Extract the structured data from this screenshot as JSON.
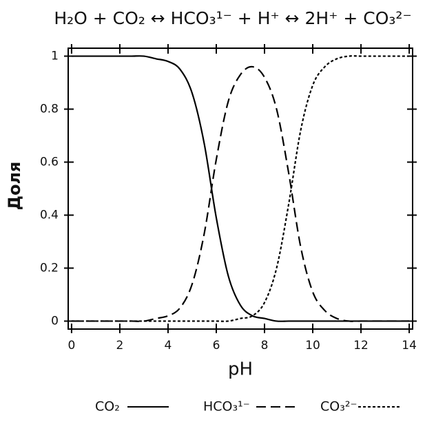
{
  "chart_data": {
    "type": "line",
    "title": "H₂O + CO₂ ↔ HCO₃¹⁻ + H⁺ ↔ 2H⁺ + CO₃²⁻",
    "x_label": "pH",
    "y_label": "Доля",
    "x": [
      0,
      0.5,
      1,
      1.5,
      2,
      2.5,
      3,
      3.5,
      4,
      4.5,
      5,
      5.5,
      6,
      6.5,
      7,
      7.5,
      8,
      8.5,
      9,
      9.5,
      10,
      10.5,
      11,
      11.5,
      12,
      12.5,
      13,
      13.5,
      14
    ],
    "series": [
      {
        "name": "CO₂",
        "color": "#000000",
        "dash": "solid",
        "values": [
          1,
          1,
          1,
          1,
          1,
          1,
          1,
          0.99,
          0.98,
          0.95,
          0.86,
          0.67,
          0.39,
          0.17,
          0.06,
          0.02,
          0.01,
          0,
          0,
          0,
          0,
          0,
          0,
          0,
          0,
          0,
          0,
          0,
          0
        ]
      },
      {
        "name": "HCO₃¹⁻",
        "color": "#000000",
        "dash": "dashed",
        "values": [
          0,
          0,
          0,
          0,
          0,
          0,
          0,
          0.01,
          0.02,
          0.05,
          0.14,
          0.33,
          0.61,
          0.83,
          0.93,
          0.96,
          0.92,
          0.8,
          0.56,
          0.28,
          0.11,
          0.04,
          0.01,
          0,
          0,
          0,
          0,
          0,
          0
        ]
      },
      {
        "name": "CO₃²⁻",
        "color": "#000000",
        "dash": "dotted",
        "values": [
          0,
          0,
          0,
          0,
          0,
          0,
          0,
          0,
          0,
          0,
          0,
          0,
          0,
          0,
          0.01,
          0.02,
          0.07,
          0.2,
          0.44,
          0.72,
          0.89,
          0.96,
          0.99,
          1,
          1,
          1,
          1,
          1,
          1
        ]
      }
    ],
    "xlim": [
      -0.14,
      14.14
    ],
    "xticks": [
      0,
      2,
      4,
      6,
      8,
      10,
      12,
      14
    ],
    "ylim": [
      -0.03,
      1.03
    ],
    "yticks": [
      0,
      0.2,
      0.4,
      0.6,
      0.8,
      1
    ],
    "grid": false
  }
}
